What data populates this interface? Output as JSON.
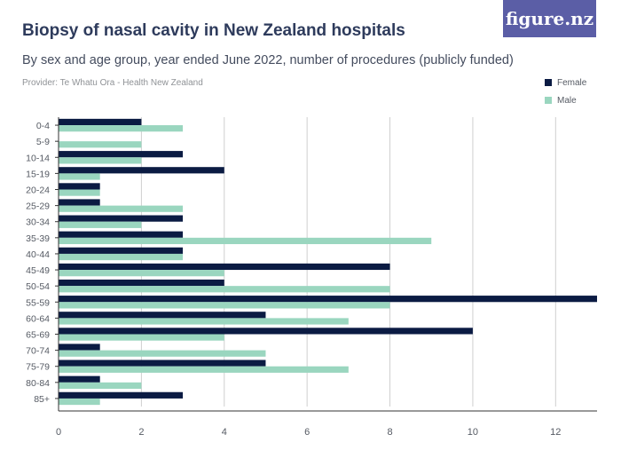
{
  "header": {
    "title": "Biopsy of nasal cavity in New Zealand hospitals",
    "subtitle": "By sex and age group, year ended June 2022, number of procedures (publicly funded)",
    "provider": "Provider: Te Whatu Ora - Health New Zealand",
    "logo_text": "figure.nz"
  },
  "colors": {
    "female": "#0b1b43",
    "male": "#9ad6bf",
    "axis": "#333333",
    "grid": "#cfcfcf",
    "logo_bg": "#5b5ea6"
  },
  "chart_data": {
    "type": "bar",
    "orientation": "horizontal",
    "categories": [
      "0-4",
      "5-9",
      "10-14",
      "15-19",
      "20-24",
      "25-29",
      "30-34",
      "35-39",
      "40-44",
      "45-49",
      "50-54",
      "55-59",
      "60-64",
      "65-69",
      "70-74",
      "75-79",
      "80-84",
      "85+"
    ],
    "series": [
      {
        "name": "Female",
        "color": "#0b1b43",
        "values": [
          2,
          0,
          3,
          4,
          1,
          1,
          3,
          3,
          3,
          8,
          4,
          13,
          5,
          10,
          1,
          5,
          1,
          3
        ]
      },
      {
        "name": "Male",
        "color": "#9ad6bf",
        "values": [
          3,
          2,
          2,
          1,
          1,
          3,
          2,
          9,
          3,
          4,
          8,
          8,
          7,
          4,
          5,
          7,
          2,
          1
        ]
      }
    ],
    "xticks": [
      0,
      2,
      4,
      6,
      8,
      10,
      12
    ],
    "xlim": [
      0,
      13
    ],
    "grid": "vertical",
    "legend_position": "top-right"
  }
}
